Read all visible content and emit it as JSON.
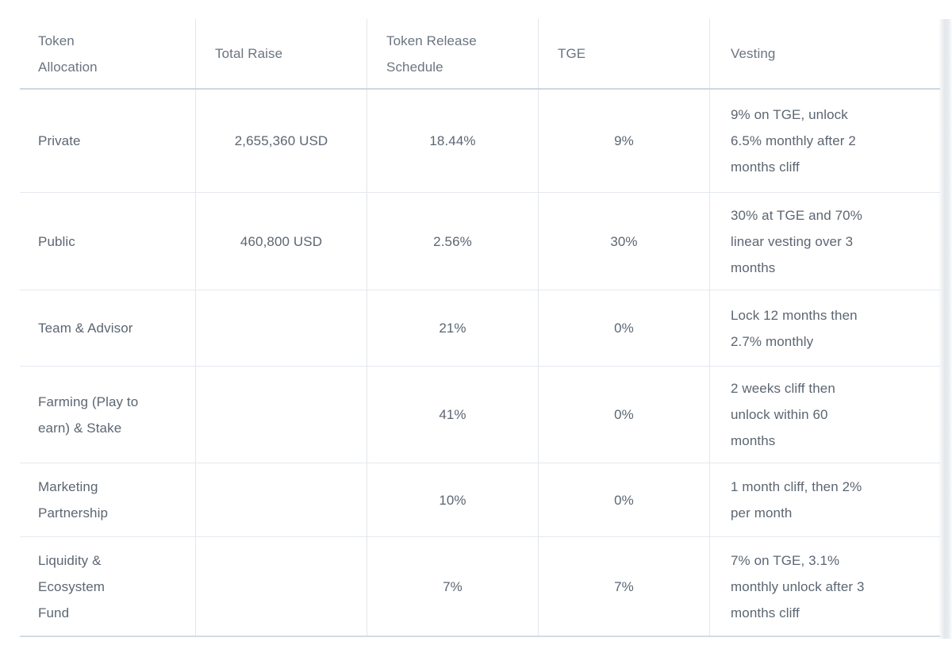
{
  "table": {
    "name": "token-allocation-vesting-table",
    "columns": [
      {
        "label": "Token\nAllocation"
      },
      {
        "label": "Total Raise"
      },
      {
        "label": "Token Release\nSchedule"
      },
      {
        "label": "TGE"
      },
      {
        "label": "Vesting"
      }
    ],
    "rows": [
      {
        "allocation": "Private",
        "total_raise": "2,655,360 USD",
        "release_schedule": "18.44%",
        "tge": "9%",
        "vesting": "9% on TGE, unlock\n6.5% monthly after 2\nmonths cliff"
      },
      {
        "allocation": "Public",
        "total_raise": "460,800 USD",
        "release_schedule": "2.56%",
        "tge": "30%",
        "vesting": "30% at TGE and 70%\nlinear vesting over 3\nmonths"
      },
      {
        "allocation": "Team & Advisor",
        "total_raise": "",
        "release_schedule": "21%",
        "tge": "0%",
        "vesting": "Lock 12 months then\n2.7% monthly"
      },
      {
        "allocation": "Farming (Play to\nearn) & Stake",
        "total_raise": "",
        "release_schedule": "41%",
        "tge": "0%",
        "vesting": "2 weeks cliff then\nunlock within 60\nmonths"
      },
      {
        "allocation": "Marketing\nPartnership",
        "total_raise": "",
        "release_schedule": "10%",
        "tge": "0%",
        "vesting": "1 month cliff, then 2%\nper month"
      },
      {
        "allocation": "Liquidity &\nEcosystem\nFund",
        "total_raise": "",
        "release_schedule": "7%",
        "tge": "7%",
        "vesting": "7% on TGE, 3.1%\nmonthly unlock after 3\nmonths cliff"
      }
    ],
    "colors": {
      "header_text": "#6b7480",
      "body_text": "#5c6672",
      "row_border": "#e4e9ef",
      "header_border": "#cdd8e2",
      "column_border": "#e1e7ed"
    }
  }
}
